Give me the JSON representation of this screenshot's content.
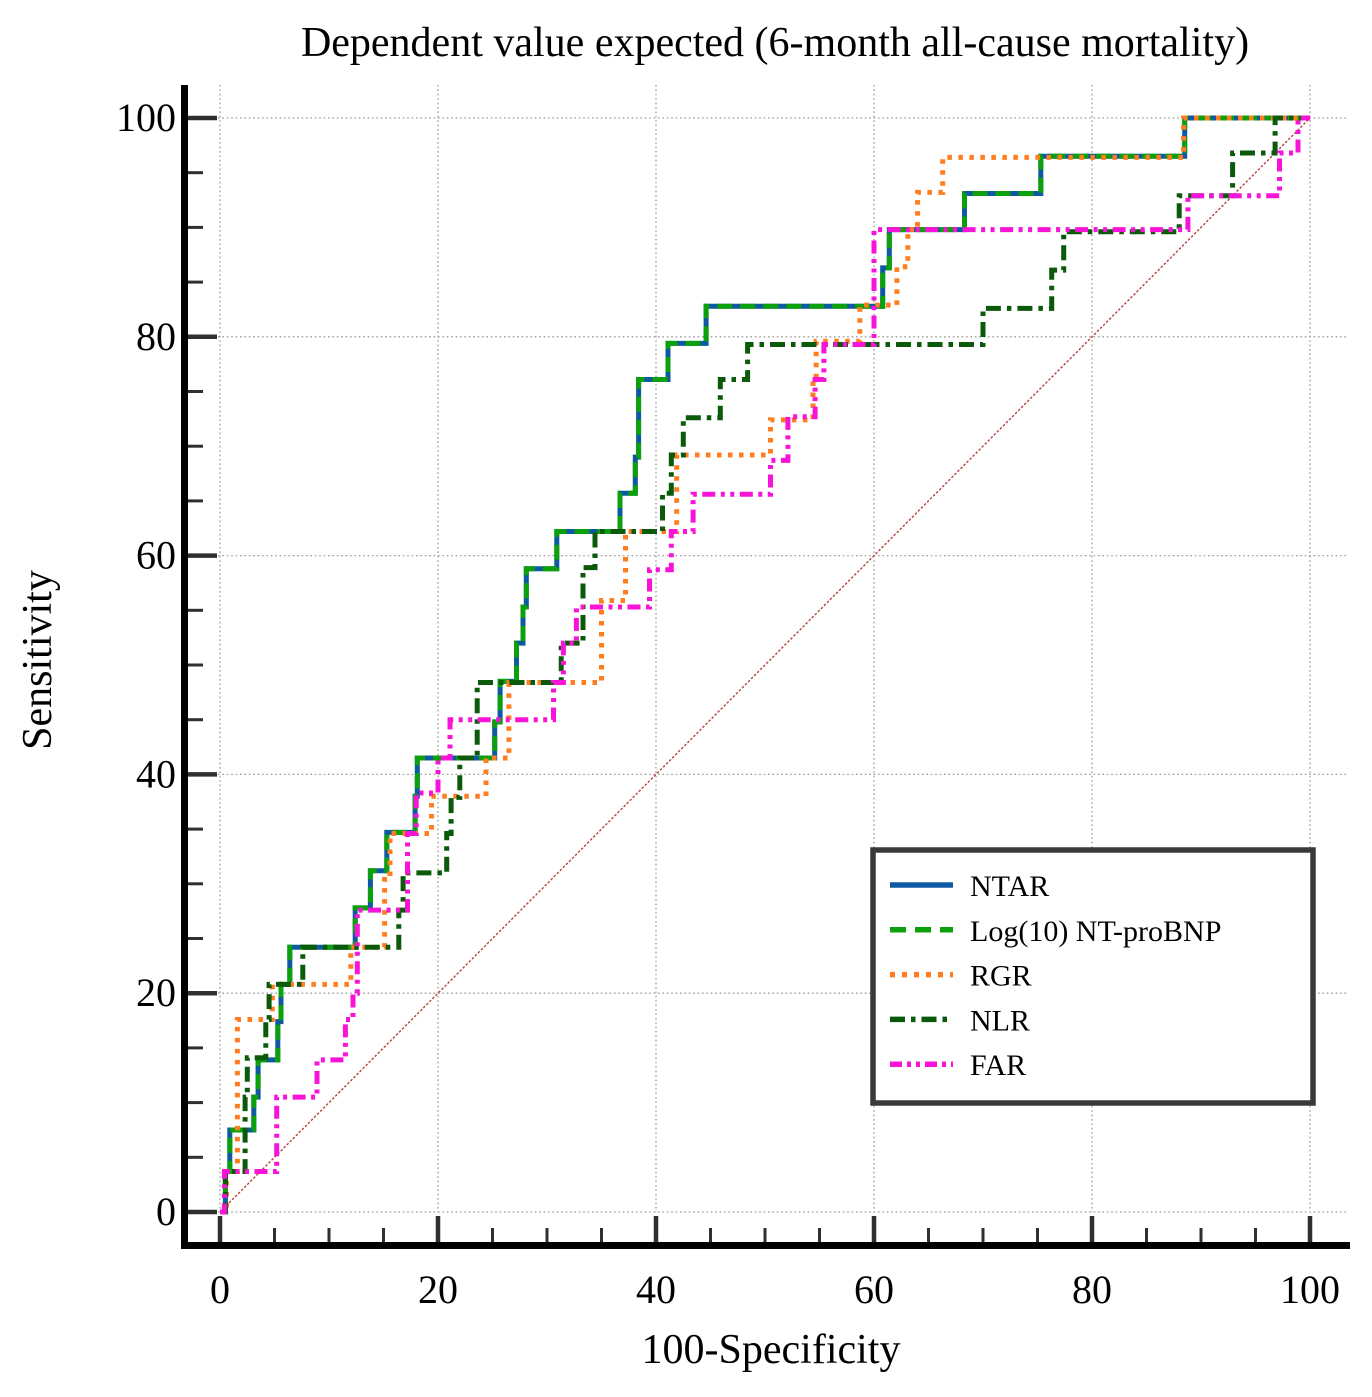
{
  "chart_data": {
    "type": "line",
    "subtype": "roc-step-curves",
    "title": "Dependent value expected (6-month all-cause mortality)",
    "xlabel": "100-Specificity",
    "ylabel": "Sensitivity",
    "xlim": [
      0,
      100
    ],
    "ylim": [
      0,
      100
    ],
    "x_ticks": [
      0,
      20,
      40,
      60,
      80,
      100
    ],
    "y_ticks": [
      0,
      20,
      40,
      60,
      80,
      100
    ],
    "minor_tick_step": 5,
    "grid": true,
    "grid_color": "#9C9C9C",
    "legend_position": "lower right",
    "legend_border_color": "#3A3A3A",
    "reference_line": {
      "from": [
        0,
        0
      ],
      "to": [
        100,
        100
      ],
      "color": "#B4423C"
    },
    "series": [
      {
        "name": "NTAR",
        "color": "#0F58A2",
        "dash": "solid",
        "points": [
          [
            0,
            0
          ],
          [
            0.5,
            0
          ],
          [
            0.5,
            3.7
          ],
          [
            0.9,
            3.7
          ],
          [
            0.9,
            7.5
          ],
          [
            3.1,
            7.5
          ],
          [
            3.1,
            10.5
          ],
          [
            3.5,
            10.5
          ],
          [
            3.5,
            13.9
          ],
          [
            5.3,
            13.9
          ],
          [
            5.3,
            17.4
          ],
          [
            5.6,
            17.4
          ],
          [
            5.6,
            20.8
          ],
          [
            6.4,
            20.8
          ],
          [
            6.4,
            24.2
          ],
          [
            12.4,
            24.2
          ],
          [
            12.4,
            27.8
          ],
          [
            13.8,
            27.8
          ],
          [
            13.8,
            31.2
          ],
          [
            15.3,
            31.2
          ],
          [
            15.3,
            34.7
          ],
          [
            17.9,
            34.7
          ],
          [
            17.9,
            38
          ],
          [
            18.1,
            38
          ],
          [
            18.1,
            41.5
          ],
          [
            25.2,
            41.5
          ],
          [
            25.2,
            44.8
          ],
          [
            25.7,
            44.8
          ],
          [
            25.7,
            48.5
          ],
          [
            27.2,
            48.5
          ],
          [
            27.2,
            52
          ],
          [
            27.8,
            52
          ],
          [
            27.8,
            55.3
          ],
          [
            28.1,
            55.3
          ],
          [
            28.1,
            58.8
          ],
          [
            30.9,
            58.8
          ],
          [
            30.9,
            62.2
          ],
          [
            36.7,
            62.2
          ],
          [
            36.7,
            65.7
          ],
          [
            38.1,
            65.7
          ],
          [
            38.1,
            69
          ],
          [
            38.4,
            69
          ],
          [
            38.4,
            76.1
          ],
          [
            41.1,
            76.1
          ],
          [
            41.1,
            79.4
          ],
          [
            44.6,
            79.4
          ],
          [
            44.6,
            82.8
          ],
          [
            60.8,
            82.8
          ],
          [
            60.8,
            86.3
          ],
          [
            61.4,
            86.3
          ],
          [
            61.4,
            89.8
          ],
          [
            68.3,
            89.8
          ],
          [
            68.3,
            93.1
          ],
          [
            75.3,
            93.1
          ],
          [
            75.3,
            96.5
          ],
          [
            88.5,
            96.5
          ],
          [
            88.5,
            100
          ],
          [
            100,
            100
          ]
        ]
      },
      {
        "name": "Log(10) NT-proBNP",
        "color": "#0DA00D",
        "dash": "dashed",
        "points": [
          [
            0,
            0
          ],
          [
            0.5,
            0
          ],
          [
            0.5,
            3.7
          ],
          [
            0.9,
            3.7
          ],
          [
            0.9,
            7.5
          ],
          [
            3.1,
            7.5
          ],
          [
            3.1,
            10.5
          ],
          [
            3.5,
            10.5
          ],
          [
            3.5,
            13.9
          ],
          [
            5.3,
            13.9
          ],
          [
            5.3,
            17.4
          ],
          [
            5.6,
            17.4
          ],
          [
            5.6,
            20.8
          ],
          [
            6.4,
            20.8
          ],
          [
            6.4,
            24.2
          ],
          [
            12.4,
            24.2
          ],
          [
            12.4,
            27.8
          ],
          [
            13.8,
            27.8
          ],
          [
            13.8,
            31.2
          ],
          [
            15.3,
            31.2
          ],
          [
            15.3,
            34.7
          ],
          [
            17.9,
            34.7
          ],
          [
            17.9,
            38
          ],
          [
            18.1,
            38
          ],
          [
            18.1,
            41.5
          ],
          [
            25.2,
            41.5
          ],
          [
            25.2,
            44.8
          ],
          [
            25.7,
            44.8
          ],
          [
            25.7,
            48.5
          ],
          [
            27.2,
            48.5
          ],
          [
            27.2,
            52
          ],
          [
            27.8,
            52
          ],
          [
            27.8,
            55.3
          ],
          [
            28.1,
            55.3
          ],
          [
            28.1,
            58.8
          ],
          [
            30.9,
            58.8
          ],
          [
            30.9,
            62.2
          ],
          [
            36.7,
            62.2
          ],
          [
            36.7,
            65.7
          ],
          [
            38.1,
            65.7
          ],
          [
            38.1,
            69
          ],
          [
            38.4,
            69
          ],
          [
            38.4,
            76.1
          ],
          [
            41.1,
            76.1
          ],
          [
            41.1,
            79.4
          ],
          [
            44.6,
            79.4
          ],
          [
            44.6,
            82.8
          ],
          [
            60.8,
            82.8
          ],
          [
            60.8,
            86.3
          ],
          [
            61.4,
            86.3
          ],
          [
            61.4,
            89.8
          ],
          [
            68.3,
            89.8
          ],
          [
            68.3,
            93.1
          ],
          [
            75.3,
            93.1
          ],
          [
            75.3,
            96.5
          ],
          [
            88.5,
            96.5
          ],
          [
            88.5,
            100
          ],
          [
            100,
            100
          ]
        ]
      },
      {
        "name": "RGR",
        "color": "#FF7D1F",
        "dash": "dotted",
        "points": [
          [
            0,
            0
          ],
          [
            0.6,
            0
          ],
          [
            0.6,
            3.7
          ],
          [
            1.6,
            3.7
          ],
          [
            1.6,
            17.6
          ],
          [
            4.8,
            17.6
          ],
          [
            4.8,
            20.8
          ],
          [
            12,
            20.8
          ],
          [
            12,
            24.2
          ],
          [
            15.1,
            24.2
          ],
          [
            15.1,
            30.4
          ],
          [
            15.6,
            30.4
          ],
          [
            15.6,
            34.6
          ],
          [
            19.4,
            34.6
          ],
          [
            19.4,
            38
          ],
          [
            24.4,
            38
          ],
          [
            24.4,
            41.5
          ],
          [
            26.5,
            41.5
          ],
          [
            26.5,
            48.4
          ],
          [
            35,
            48.4
          ],
          [
            35,
            55.9
          ],
          [
            37.2,
            55.9
          ],
          [
            37.2,
            62.2
          ],
          [
            41.9,
            62.2
          ],
          [
            41.9,
            69.2
          ],
          [
            50.5,
            69.2
          ],
          [
            50.5,
            72.4
          ],
          [
            54.4,
            72.4
          ],
          [
            54.4,
            76.1
          ],
          [
            54.7,
            76.1
          ],
          [
            54.7,
            79.6
          ],
          [
            58.7,
            79.6
          ],
          [
            58.7,
            82.9
          ],
          [
            62.1,
            82.9
          ],
          [
            62.1,
            86.4
          ],
          [
            63.1,
            86.4
          ],
          [
            63.1,
            89.8
          ],
          [
            64,
            89.8
          ],
          [
            64,
            93.2
          ],
          [
            66.3,
            93.2
          ],
          [
            66.3,
            96.4
          ],
          [
            88.4,
            96.4
          ],
          [
            88.4,
            100
          ],
          [
            100,
            100
          ]
        ]
      },
      {
        "name": "NLR",
        "color": "#0A5A0A",
        "dash": "dash-dot",
        "points": [
          [
            0,
            0
          ],
          [
            0.5,
            0
          ],
          [
            0.5,
            3.7
          ],
          [
            2.3,
            3.7
          ],
          [
            2.3,
            10.5
          ],
          [
            2.5,
            10.5
          ],
          [
            2.5,
            14.1
          ],
          [
            4.2,
            14.1
          ],
          [
            4.2,
            17.6
          ],
          [
            4.5,
            17.6
          ],
          [
            4.5,
            20.8
          ],
          [
            7.6,
            20.8
          ],
          [
            7.6,
            24.2
          ],
          [
            16.4,
            24.2
          ],
          [
            16.4,
            27.6
          ],
          [
            16.8,
            27.6
          ],
          [
            16.8,
            31
          ],
          [
            20.8,
            31
          ],
          [
            20.8,
            34.6
          ],
          [
            21.2,
            34.6
          ],
          [
            21.2,
            37.9
          ],
          [
            22,
            37.9
          ],
          [
            22,
            41.5
          ],
          [
            23.6,
            41.5
          ],
          [
            23.6,
            48.4
          ],
          [
            31.3,
            48.4
          ],
          [
            31.3,
            52
          ],
          [
            33.3,
            52
          ],
          [
            33.3,
            58.9
          ],
          [
            34.4,
            58.9
          ],
          [
            34.4,
            62.2
          ],
          [
            40.6,
            62.2
          ],
          [
            40.6,
            65.7
          ],
          [
            41.4,
            65.7
          ],
          [
            41.4,
            69.2
          ],
          [
            42.5,
            69.2
          ],
          [
            42.5,
            72.6
          ],
          [
            45.9,
            72.6
          ],
          [
            45.9,
            76.1
          ],
          [
            48.4,
            76.1
          ],
          [
            48.4,
            79.3
          ],
          [
            70,
            79.3
          ],
          [
            70,
            82.6
          ],
          [
            76.3,
            82.6
          ],
          [
            76.3,
            86.1
          ],
          [
            77.4,
            86.1
          ],
          [
            77.4,
            89.6
          ],
          [
            88,
            89.6
          ],
          [
            88,
            92.9
          ],
          [
            92.9,
            92.9
          ],
          [
            92.9,
            96.8
          ],
          [
            96.8,
            96.8
          ],
          [
            96.8,
            100
          ],
          [
            100,
            100
          ]
        ]
      },
      {
        "name": "FAR",
        "color": "#F813D9",
        "dash": "dash-dot-dot",
        "points": [
          [
            0,
            0
          ],
          [
            0.4,
            0
          ],
          [
            0.4,
            3.7
          ],
          [
            5.2,
            3.7
          ],
          [
            5.2,
            10.5
          ],
          [
            8.9,
            10.5
          ],
          [
            8.9,
            13.9
          ],
          [
            11.5,
            13.9
          ],
          [
            11.5,
            17.6
          ],
          [
            12.2,
            17.6
          ],
          [
            12.2,
            20
          ],
          [
            12.6,
            20
          ],
          [
            12.6,
            27.6
          ],
          [
            17.2,
            27.6
          ],
          [
            17.2,
            34.6
          ],
          [
            18,
            34.6
          ],
          [
            18,
            38.3
          ],
          [
            20,
            38.3
          ],
          [
            20,
            41.5
          ],
          [
            21.1,
            41.5
          ],
          [
            21.1,
            45
          ],
          [
            30.6,
            45
          ],
          [
            30.6,
            48.4
          ],
          [
            31.5,
            48.4
          ],
          [
            31.5,
            52
          ],
          [
            32.7,
            52
          ],
          [
            32.7,
            55.3
          ],
          [
            39.4,
            55.3
          ],
          [
            39.4,
            58.7
          ],
          [
            41.4,
            58.7
          ],
          [
            41.4,
            62.2
          ],
          [
            43.4,
            62.2
          ],
          [
            43.4,
            65.6
          ],
          [
            50.5,
            65.6
          ],
          [
            50.5,
            68.7
          ],
          [
            52.1,
            68.7
          ],
          [
            52.1,
            72.7
          ],
          [
            54.6,
            72.7
          ],
          [
            54.6,
            76.1
          ],
          [
            55.4,
            76.1
          ],
          [
            55.4,
            79.3
          ],
          [
            60,
            79.3
          ],
          [
            60,
            89.8
          ],
          [
            88.8,
            89.8
          ],
          [
            88.8,
            92.9
          ],
          [
            97.2,
            92.9
          ],
          [
            97.2,
            96.8
          ],
          [
            98.9,
            96.8
          ],
          [
            98.9,
            100
          ],
          [
            100,
            100
          ]
        ]
      }
    ]
  }
}
